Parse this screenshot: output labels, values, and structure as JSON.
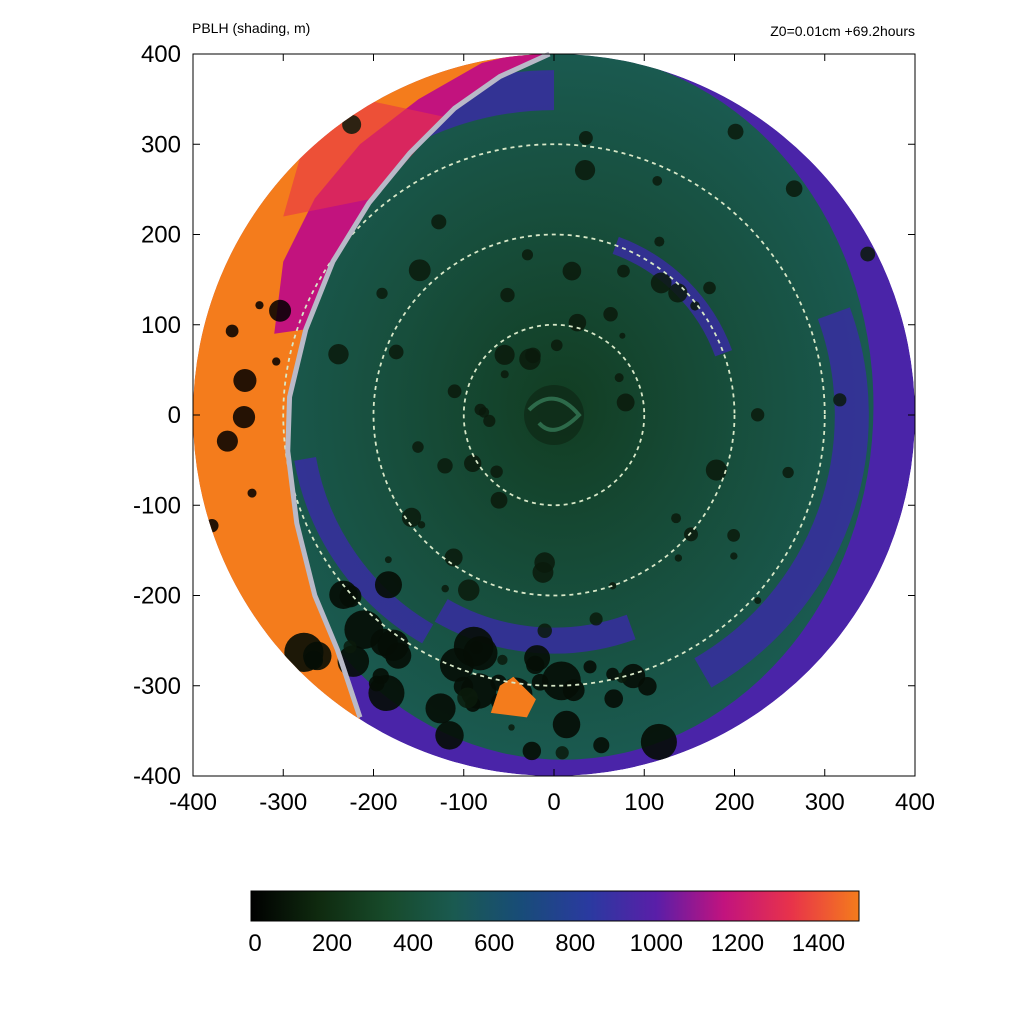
{
  "header": {
    "left_title": "PBLH (shading, m)",
    "right_title": "Z0=0.01cm  +69.2hours"
  },
  "chart_data": {
    "type": "heatmap",
    "title": "PBLH (shading, m)",
    "annotation": "Z0=0.01cm  +69.2hours",
    "xlim": [
      -400,
      400
    ],
    "ylim": [
      -400,
      400
    ],
    "xticks": [
      "-400",
      "-300",
      "-200",
      "-100",
      "0",
      "100",
      "200",
      "300",
      "400"
    ],
    "yticks": [
      "-400",
      "-300",
      "-200",
      "-100",
      "0",
      "100",
      "200",
      "300",
      "400"
    ],
    "domain_radius": 400,
    "range_rings": [
      100,
      200,
      300
    ],
    "front_line_points": [
      [
        -5,
        400
      ],
      [
        -60,
        375
      ],
      [
        -110,
        340
      ],
      [
        -160,
        290
      ],
      [
        -205,
        235
      ],
      [
        -245,
        170
      ],
      [
        -275,
        95
      ],
      [
        -293,
        20
      ],
      [
        -295,
        -40
      ],
      [
        -285,
        -120
      ],
      [
        -265,
        -200
      ],
      [
        -240,
        -260
      ],
      [
        -215,
        -335
      ]
    ],
    "colorbar": {
      "min": 0,
      "max": 1500,
      "ticks": [
        "0",
        "200",
        "400",
        "600",
        "800",
        "1000",
        "1200",
        "1400"
      ],
      "tick_values": [
        0,
        200,
        400,
        600,
        800,
        1000,
        1200,
        1400
      ],
      "colors": [
        "#000000",
        "#0f2a0f",
        "#174a2a",
        "#1a5a50",
        "#184c78",
        "#2a3aa0",
        "#5a1ea8",
        "#c2137e",
        "#e8334a",
        "#f47c1c"
      ]
    },
    "regions": [
      {
        "name": "outer-boundary-layer",
        "value": 1450,
        "color": "#f47c1c"
      },
      {
        "name": "transition-band",
        "value": 1150,
        "color": "#c2137e"
      },
      {
        "name": "outer-rainband-zone",
        "value": 950,
        "color": "#4a24a8"
      },
      {
        "name": "core-region",
        "value": 650,
        "color": "#174e3c"
      },
      {
        "name": "convective-cells",
        "value": 150,
        "color": "#050d05"
      }
    ]
  }
}
